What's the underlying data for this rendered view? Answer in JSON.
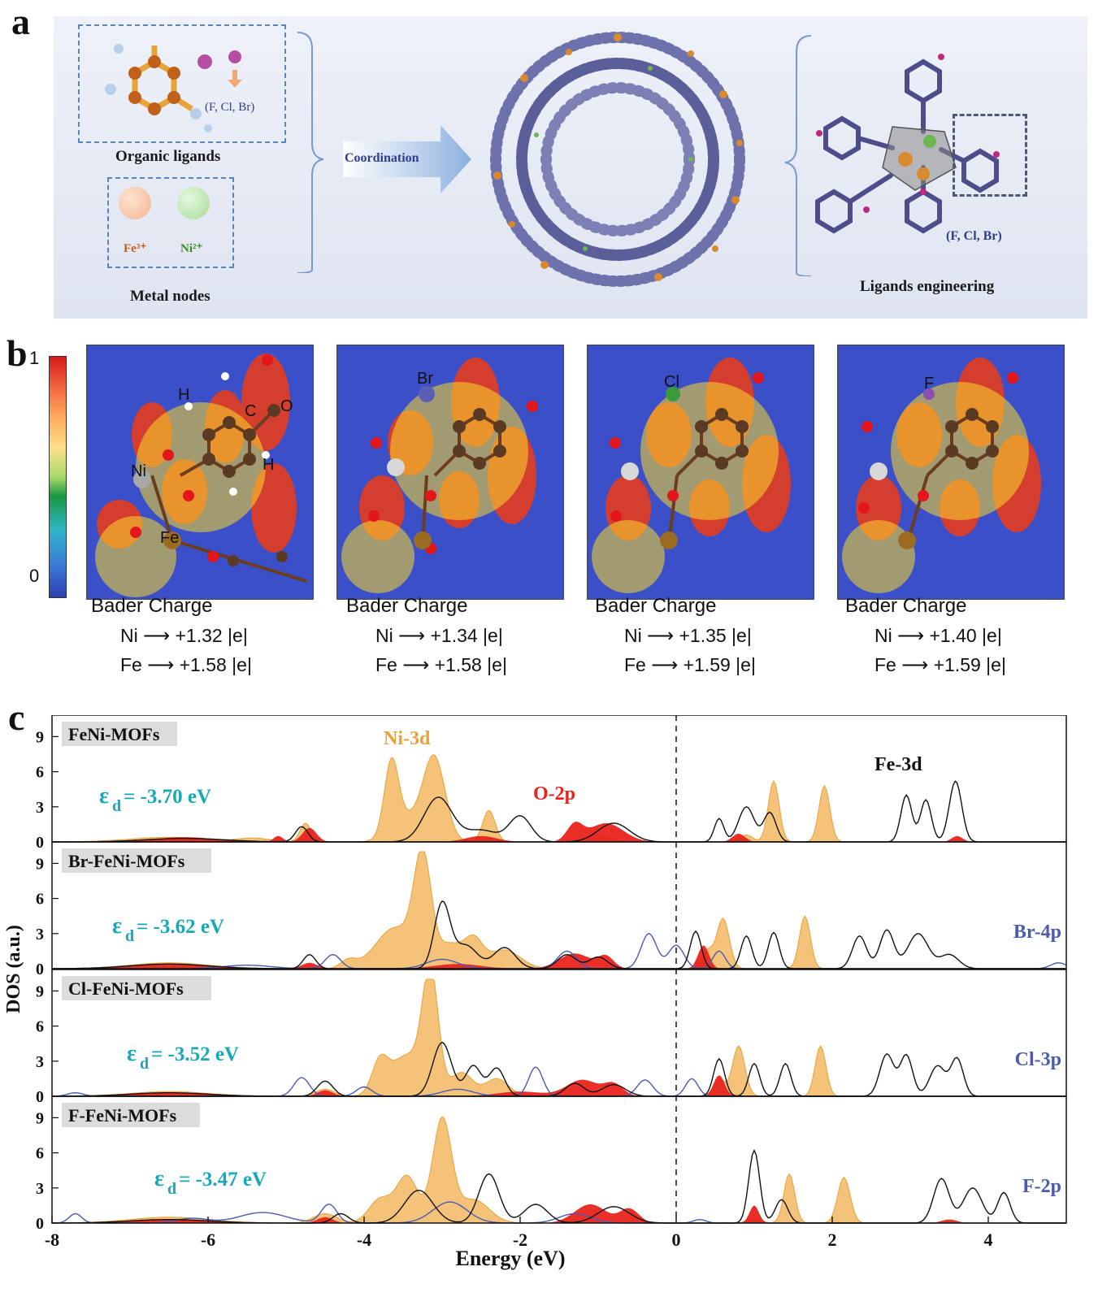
{
  "panel_a": {
    "letter": "a",
    "organic_ligands": "Organic ligands",
    "halogen_note": "(F, Cl, Br)",
    "fe_ion": "Fe³⁺",
    "ni_ion": "Ni²⁺",
    "metal_nodes": "Metal nodes",
    "coordination": "Coordination",
    "halogen_note_right": "(F, Cl, Br)",
    "ligands_engineering": "Ligands engineering",
    "colors": {
      "fe": "#f3b48e",
      "ni": "#a6dc98",
      "arrow": "#8ab0df",
      "frame": "#7a99cc"
    }
  },
  "panel_b": {
    "letter": "b",
    "colorbar_max": "1",
    "colorbar_min": "0",
    "tiles": [
      {
        "halogen": "",
        "atom_labels": [
          "H",
          "C",
          "O",
          "Ni",
          "H",
          "Fe"
        ],
        "bader_title": "Bader Charge",
        "ni": "Ni ⟶ +1.32 |e|",
        "fe": "Fe ⟶ +1.58 |e|"
      },
      {
        "halogen": "Br",
        "atom_labels": [],
        "bader_title": "Bader Charge",
        "ni": "Ni ⟶ +1.34 |e|",
        "fe": "Fe ⟶ +1.58 |e|"
      },
      {
        "halogen": "Cl",
        "atom_labels": [],
        "bader_title": "Bader Charge",
        "ni": "Ni ⟶ +1.35 |e|",
        "fe": "Fe ⟶ +1.59 |e|"
      },
      {
        "halogen": "F",
        "atom_labels": [],
        "bader_title": "Bader Charge",
        "ni": "Ni ⟶ +1.40 |e|",
        "fe": "Fe ⟶ +1.59 |e|"
      }
    ]
  },
  "chart_data": {
    "type": "area",
    "panel_letter": "c",
    "xlabel": "Energy (eV)",
    "ylabel": "DOS (a.u.)",
    "xlim": [
      -8,
      5
    ],
    "xticks": [
      -8,
      -6,
      -4,
      -2,
      0,
      2,
      4
    ],
    "ylim": [
      0,
      10
    ],
    "yticks": [
      0,
      3,
      6,
      9
    ],
    "fermi_level_line": 0,
    "colors": {
      "ni3d": "#f5c27a",
      "ni3d_edge": "#e8a23a",
      "o2p": "#e8241c",
      "fe3d": "#111111",
      "halogen": "#4a5bb0",
      "eps": "#18a9b8",
      "label_bg": "#dcdcdc"
    },
    "series_labels": {
      "ni3d": "Ni-3d",
      "o2p": "O-2p",
      "fe3d": "Fe-3d"
    },
    "panels": [
      {
        "name": "FeNi-MOFs",
        "eps_text": "ε",
        "eps_sub": "d",
        "eps_value": "= -3.70 eV",
        "halogen_label": "",
        "ni3d": [
          [
            -3.65,
            6.0,
            0.09
          ],
          [
            -3.1,
            7.0,
            0.14
          ],
          [
            -3.45,
            2.0,
            0.2
          ],
          [
            -2.4,
            2.7,
            0.08
          ],
          [
            -4.75,
            1.6,
            0.07
          ],
          [
            -6.5,
            0.4,
            0.5
          ],
          [
            -1.0,
            0.6,
            0.15
          ],
          [
            1.25,
            5.2,
            0.07
          ],
          [
            1.9,
            4.8,
            0.07
          ],
          [
            0.9,
            0.6,
            0.08
          ],
          [
            -5.4,
            0.3,
            0.2
          ]
        ],
        "o2p": [
          [
            -0.9,
            1.6,
            0.22
          ],
          [
            -1.3,
            1.4,
            0.1
          ],
          [
            -4.7,
            1.2,
            0.09
          ],
          [
            -6.3,
            0.4,
            0.4
          ],
          [
            -2.5,
            0.5,
            0.2
          ],
          [
            0.8,
            0.7,
            0.08
          ],
          [
            3.6,
            0.5,
            0.07
          ],
          [
            -5.1,
            0.5,
            0.06
          ]
        ],
        "fe3d": [
          [
            -3.05,
            3.8,
            0.18
          ],
          [
            -2.0,
            2.2,
            0.14
          ],
          [
            -2.5,
            1.0,
            0.2
          ],
          [
            -0.8,
            1.6,
            0.2
          ],
          [
            -4.8,
            1.3,
            0.08
          ],
          [
            -6.3,
            0.3,
            0.5
          ],
          [
            0.55,
            2.0,
            0.06
          ],
          [
            0.9,
            3.0,
            0.1
          ],
          [
            1.2,
            2.5,
            0.08
          ],
          [
            2.95,
            4.0,
            0.07
          ],
          [
            3.2,
            3.6,
            0.07
          ],
          [
            3.58,
            5.2,
            0.08
          ]
        ],
        "halogen": []
      },
      {
        "name": "Br-FeNi-MOFs",
        "eps_text": "ε",
        "eps_sub": "d",
        "eps_value": "= -3.62 eV",
        "halogen_label": "Br-4p",
        "ni3d": [
          [
            -3.25,
            9.0,
            0.11
          ],
          [
            -3.6,
            3.5,
            0.25
          ],
          [
            -2.9,
            2.0,
            0.15
          ],
          [
            -2.6,
            2.4,
            0.12
          ],
          [
            -2.2,
            1.6,
            0.2
          ],
          [
            -4.2,
            0.7,
            0.1
          ],
          [
            -6.5,
            0.5,
            0.5
          ],
          [
            0.6,
            4.3,
            0.08
          ],
          [
            0.4,
            1.5,
            0.07
          ],
          [
            1.65,
            4.5,
            0.07
          ]
        ],
        "o2p": [
          [
            -1.3,
            1.3,
            0.2
          ],
          [
            -0.9,
            1.0,
            0.1
          ],
          [
            0.35,
            2.0,
            0.07
          ],
          [
            -6.5,
            0.4,
            0.5
          ],
          [
            -4.7,
            0.5,
            0.1
          ],
          [
            -2.8,
            0.4,
            0.3
          ]
        ],
        "fe3d": [
          [
            -3.0,
            5.5,
            0.1
          ],
          [
            -2.7,
            2.0,
            0.15
          ],
          [
            -2.2,
            1.8,
            0.14
          ],
          [
            -1.4,
            1.2,
            0.12
          ],
          [
            -1.0,
            1.0,
            0.12
          ],
          [
            -4.7,
            1.2,
            0.08
          ],
          [
            -6.5,
            0.4,
            0.5
          ],
          [
            0.25,
            3.2,
            0.07
          ],
          [
            0.9,
            2.8,
            0.07
          ],
          [
            1.25,
            3.1,
            0.07
          ],
          [
            2.35,
            2.8,
            0.09
          ],
          [
            2.7,
            3.3,
            0.09
          ],
          [
            3.1,
            3.0,
            0.13
          ],
          [
            3.5,
            1.2,
            0.12
          ]
        ],
        "halogen": [
          [
            -0.35,
            3.0,
            0.1
          ],
          [
            0.0,
            2.0,
            0.1
          ],
          [
            -1.4,
            1.5,
            0.12
          ],
          [
            -4.4,
            1.2,
            0.1
          ],
          [
            -3.0,
            0.8,
            0.2
          ],
          [
            -5.5,
            0.3,
            0.3
          ],
          [
            0.55,
            1.5,
            0.08
          ],
          [
            4.9,
            0.5,
            0.1
          ]
        ]
      },
      {
        "name": "Cl-FeNi-MOFs",
        "eps_text": "ε",
        "eps_sub": "d",
        "eps_value": "= -3.52 eV",
        "halogen_label": "Cl-3p",
        "ni3d": [
          [
            -3.15,
            10.0,
            0.1
          ],
          [
            -3.45,
            3.5,
            0.22
          ],
          [
            -3.8,
            2.5,
            0.1
          ],
          [
            -2.75,
            2.0,
            0.14
          ],
          [
            -2.3,
            1.5,
            0.15
          ],
          [
            -4.5,
            0.6,
            0.12
          ],
          [
            -6.5,
            0.4,
            0.5
          ],
          [
            0.8,
            4.3,
            0.08
          ],
          [
            0.55,
            1.5,
            0.07
          ],
          [
            1.85,
            4.3,
            0.07
          ]
        ],
        "o2p": [
          [
            -1.2,
            1.4,
            0.2
          ],
          [
            -0.8,
            1.0,
            0.12
          ],
          [
            0.55,
            1.8,
            0.07
          ],
          [
            -6.5,
            0.3,
            0.5
          ],
          [
            -4.5,
            0.5,
            0.1
          ],
          [
            -2.0,
            0.4,
            0.3
          ]
        ],
        "fe3d": [
          [
            -3.0,
            4.6,
            0.12
          ],
          [
            -2.6,
            2.6,
            0.1
          ],
          [
            -2.3,
            2.4,
            0.1
          ],
          [
            -1.3,
            1.1,
            0.12
          ],
          [
            -0.8,
            1.0,
            0.15
          ],
          [
            -4.5,
            1.3,
            0.1
          ],
          [
            -6.5,
            0.3,
            0.5
          ],
          [
            0.55,
            3.2,
            0.07
          ],
          [
            1.0,
            2.8,
            0.07
          ],
          [
            1.4,
            2.8,
            0.07
          ],
          [
            2.7,
            3.6,
            0.09
          ],
          [
            2.95,
            3.5,
            0.08
          ],
          [
            3.35,
            2.6,
            0.1
          ],
          [
            3.6,
            3.2,
            0.08
          ]
        ],
        "halogen": [
          [
            -1.8,
            2.5,
            0.09
          ],
          [
            -4.8,
            1.6,
            0.1
          ],
          [
            -0.4,
            1.4,
            0.1
          ],
          [
            0.2,
            1.5,
            0.08
          ],
          [
            -4.0,
            0.8,
            0.1
          ],
          [
            -2.8,
            0.6,
            0.2
          ],
          [
            -7.7,
            0.3,
            0.1
          ]
        ]
      },
      {
        "name": "F-FeNi-MOFs",
        "eps_text": "ε",
        "eps_sub": "d",
        "eps_value": "= -3.47 eV",
        "halogen_label": "F-2p",
        "ni3d": [
          [
            -3.0,
            8.8,
            0.12
          ],
          [
            -3.45,
            4.0,
            0.14
          ],
          [
            -3.8,
            2.0,
            0.14
          ],
          [
            -2.6,
            2.0,
            0.2
          ],
          [
            -6.5,
            0.5,
            0.5
          ],
          [
            -4.5,
            0.8,
            0.15
          ],
          [
            1.45,
            4.2,
            0.07
          ],
          [
            2.15,
            3.9,
            0.08
          ],
          [
            1.0,
            0.5,
            0.08
          ]
        ],
        "o2p": [
          [
            -1.1,
            1.6,
            0.2
          ],
          [
            -0.6,
            1.2,
            0.12
          ],
          [
            1.0,
            1.5,
            0.06
          ],
          [
            -6.5,
            0.3,
            0.5
          ],
          [
            -4.5,
            0.5,
            0.1
          ],
          [
            3.5,
            0.3,
            0.1
          ]
        ],
        "fe3d": [
          [
            -3.3,
            2.8,
            0.18
          ],
          [
            -2.4,
            4.2,
            0.13
          ],
          [
            -1.8,
            1.6,
            0.15
          ],
          [
            -0.8,
            1.4,
            0.2
          ],
          [
            -4.3,
            0.8,
            0.1
          ],
          [
            -6.5,
            0.3,
            0.5
          ],
          [
            1.0,
            6.2,
            0.07
          ],
          [
            1.35,
            2.0,
            0.08
          ],
          [
            3.4,
            3.8,
            0.1
          ],
          [
            3.8,
            3.0,
            0.12
          ],
          [
            4.2,
            2.6,
            0.08
          ]
        ],
        "halogen": [
          [
            -2.9,
            1.8,
            0.22
          ],
          [
            -4.45,
            1.6,
            0.1
          ],
          [
            -5.3,
            0.9,
            0.3
          ],
          [
            -7.7,
            0.8,
            0.08
          ],
          [
            -6.2,
            0.4,
            0.2
          ],
          [
            -1.3,
            0.8,
            0.2
          ],
          [
            0.3,
            0.3,
            0.08
          ]
        ]
      }
    ]
  }
}
